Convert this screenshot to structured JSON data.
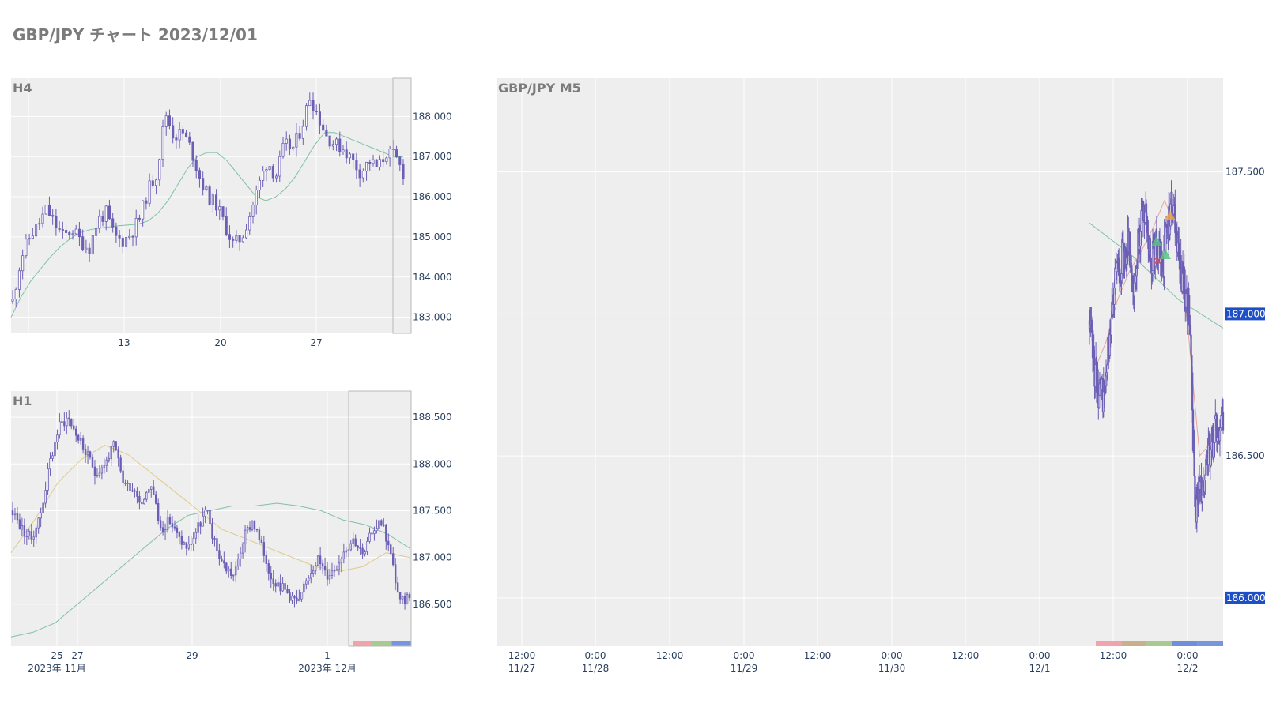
{
  "page": {
    "title": "GBP/JPY チャート 2023/12/01"
  },
  "colors": {
    "plot_bg": "#eeeeee",
    "grid": "#ffffff",
    "candle": "#6b5fb5",
    "ma_slow": "#7fc1a4",
    "ma_fast": "#e0c98a",
    "ma_m5_fast": "#e8a49a",
    "highlight_label": "#1f4fc4",
    "axis_text": "#2a3f5f"
  },
  "chart_data": [
    {
      "id": "h4",
      "type": "candlestick",
      "title": "H4",
      "ylim": [
        182.6,
        188.95
      ],
      "y_ticks": [
        "188.000",
        "187.000",
        "186.000",
        "185.000",
        "184.000",
        "183.000"
      ],
      "x_ticks": [
        "13",
        "20",
        "27"
      ],
      "series": [
        {
          "name": "close",
          "values": [
            183.4,
            184.5,
            185.0,
            185.3,
            185.7,
            185.3,
            185.0,
            185.2,
            184.9,
            184.7,
            185.4,
            185.6,
            185.0,
            184.9,
            185.1,
            185.5,
            186.2,
            186.6,
            188.1,
            187.5,
            187.6,
            187.2,
            186.5,
            186.0,
            185.8,
            185.3,
            184.8,
            185.0,
            185.6,
            186.3,
            186.9,
            186.5,
            187.3,
            187.2,
            187.7,
            188.5,
            188.0,
            187.5,
            187.3,
            187.2,
            186.9,
            186.6,
            186.9,
            186.7,
            187.1,
            187.0,
            186.6
          ]
        },
        {
          "name": "ma_slow",
          "values": [
            183.0,
            183.5,
            183.9,
            184.2,
            184.5,
            184.75,
            184.95,
            185.1,
            185.18,
            185.22,
            185.25,
            185.28,
            185.3,
            185.32,
            185.4,
            185.6,
            185.9,
            186.3,
            186.7,
            187.0,
            187.1,
            187.1,
            186.9,
            186.6,
            186.3,
            186.0,
            185.9,
            186.0,
            186.2,
            186.5,
            186.9,
            187.3,
            187.6,
            187.6,
            187.5,
            187.4,
            187.3,
            187.2,
            187.1,
            187.0,
            187.0
          ]
        }
      ]
    },
    {
      "id": "h1",
      "type": "candlestick",
      "title": "H1",
      "ylim": [
        186.05,
        188.78
      ],
      "y_ticks": [
        "188.500",
        "188.000",
        "187.500",
        "187.000",
        "186.500"
      ],
      "x_ticks": [
        "25",
        "27",
        "29",
        "1"
      ],
      "x_month_labels": [
        "2023年 11月",
        "2023年 12月"
      ],
      "session_colors": [
        "#f0a3ab",
        "#a8c98f",
        "#7a95e0"
      ],
      "series": [
        {
          "name": "close",
          "values": [
            187.5,
            187.3,
            187.2,
            187.45,
            188.0,
            188.4,
            188.5,
            188.3,
            188.1,
            187.9,
            188.0,
            188.2,
            187.8,
            187.75,
            187.6,
            187.8,
            187.3,
            187.4,
            187.2,
            187.1,
            187.3,
            187.5,
            187.1,
            186.9,
            186.8,
            187.2,
            187.4,
            187.1,
            186.8,
            186.7,
            186.6,
            186.5,
            186.8,
            187.0,
            186.8,
            186.9,
            187.1,
            187.2,
            187.0,
            187.3,
            187.4,
            187.0,
            186.5,
            186.6
          ]
        },
        {
          "name": "ma_slow",
          "values": [
            186.15,
            186.2,
            186.3,
            186.5,
            186.7,
            186.9,
            187.1,
            187.3,
            187.45,
            187.5,
            187.55,
            187.55,
            187.58,
            187.55,
            187.5,
            187.4,
            187.35,
            187.25,
            187.1
          ]
        },
        {
          "name": "ma_fast",
          "values": [
            187.05,
            187.4,
            187.8,
            188.05,
            188.2,
            188.1,
            187.9,
            187.7,
            187.5,
            187.3,
            187.2,
            187.1,
            187.0,
            186.9,
            186.85,
            186.9,
            187.05,
            187.0
          ]
        }
      ]
    },
    {
      "id": "m5",
      "type": "candlestick",
      "title": "GBP/JPY M5",
      "ylim": [
        185.83,
        187.83
      ],
      "y_ticks": [
        "187.500",
        "187.000",
        "186.500",
        "186.000"
      ],
      "y_highlight": [
        "187.000",
        "186.000"
      ],
      "x_ticks": [
        {
          "time": "12:00",
          "date": "11/27"
        },
        {
          "time": "0:00",
          "date": "11/28"
        },
        {
          "time": "12:00",
          "date": ""
        },
        {
          "time": "0:00",
          "date": "11/29"
        },
        {
          "time": "12:00",
          "date": ""
        },
        {
          "time": "0:00",
          "date": "11/30"
        },
        {
          "time": "12:00",
          "date": ""
        },
        {
          "time": "0:00",
          "date": "12/1"
        },
        {
          "time": "12:00",
          "date": ""
        },
        {
          "time": "0:00",
          "date": "12/2"
        }
      ],
      "session_colors": [
        "#f0a3ab",
        "#c7b08a",
        "#a8c98f",
        "#6f8fd8",
        "#7a95e0"
      ],
      "series": [
        {
          "name": "close",
          "values": [
            186.95,
            186.8,
            186.7,
            186.75,
            187.05,
            187.15,
            187.2,
            187.25,
            187.1,
            187.3,
            187.35,
            187.2,
            187.25,
            187.15,
            187.3,
            187.4,
            187.2,
            187.1,
            187.0,
            186.3,
            186.4,
            186.45,
            186.55,
            186.6,
            186.65
          ]
        },
        {
          "name": "ma_slow",
          "values": [
            187.32,
            187.2,
            187.05,
            186.95
          ]
        },
        {
          "name": "ma_fast",
          "values": [
            186.8,
            186.9,
            187.05,
            187.15,
            187.22,
            187.3,
            187.4,
            187.3,
            186.95,
            186.5,
            186.55,
            186.6
          ]
        }
      ]
    }
  ]
}
